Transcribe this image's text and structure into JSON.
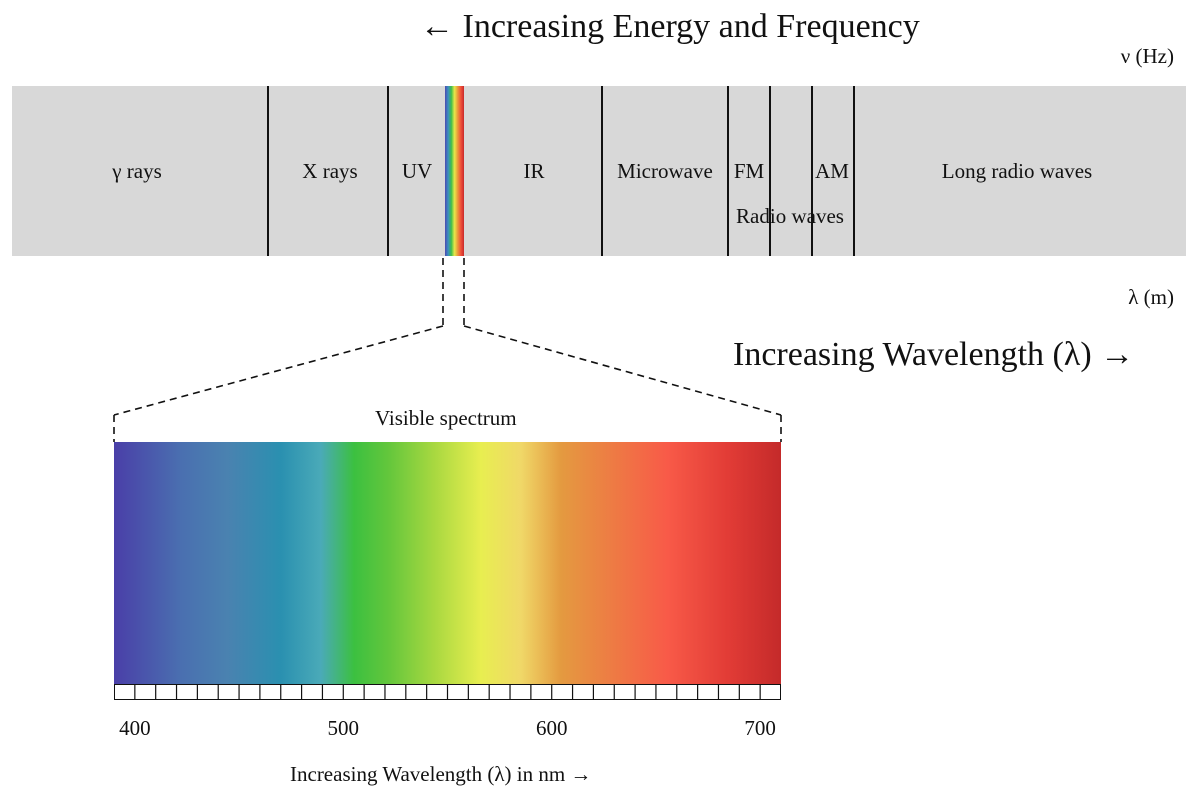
{
  "header": {
    "energy_title": "← Increasing Energy and Frequency",
    "frequency_unit": "ν (Hz)",
    "wavelength_unit": "λ (m)",
    "wavelength_title": "Increasing Wavelength (λ) →"
  },
  "bands": {
    "gamma": "γ rays",
    "xray": "X rays",
    "uv": "UV",
    "ir": "IR",
    "microwave": "Microwave",
    "fm": "FM",
    "am": "AM",
    "radio": "Radio waves",
    "long_radio": "Long radio waves"
  },
  "visible": {
    "label": "Visible spectrum",
    "axis_title": "Increasing Wavelength (λ) in nm →",
    "ticks": [
      "400",
      "500",
      "600",
      "700"
    ],
    "tick_values": [
      400,
      500,
      600,
      700
    ],
    "range_nm": [
      390,
      710
    ]
  },
  "colors": {
    "band_background": "#d8d8d8",
    "divider": "#111111"
  }
}
